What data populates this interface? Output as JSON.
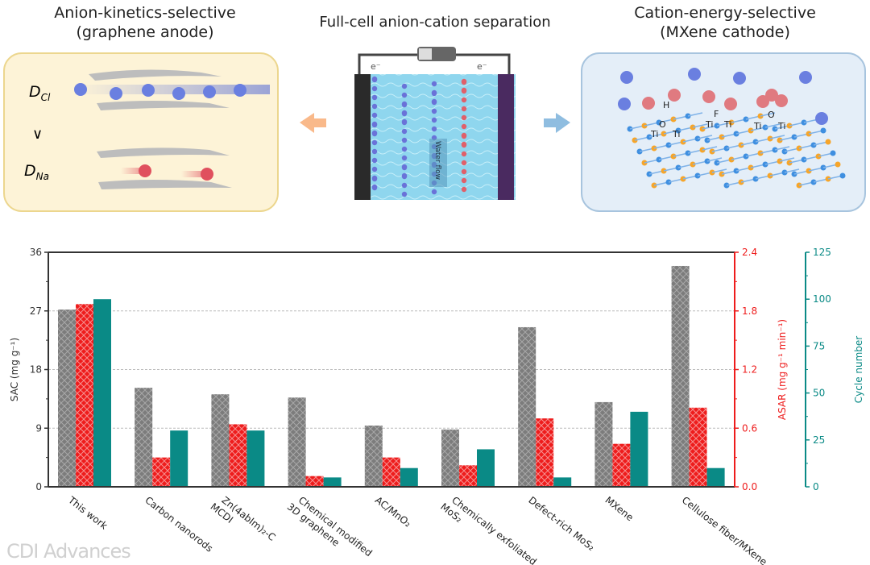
{
  "panels": {
    "left_title": [
      "Anion-kinetics-selective",
      "(graphene anode)"
    ],
    "center_title": "Full-cell anion-cation separation",
    "right_title": [
      "Cation-energy-selective",
      "(MXene cathode)"
    ],
    "d_cl": "D",
    "d_cl_sub": "Cl",
    "d_na": "D",
    "d_na_sub": "Na",
    "compare": "∨",
    "electron": "e⁻",
    "water_flow": "Water flow",
    "ti": "Ti",
    "h": "H",
    "o": "O",
    "f": "F"
  },
  "watermark": "CDI Advances",
  "colors": {
    "sac": "#808080",
    "asar": "#ee1c1c",
    "cycle": "#0a8a86"
  },
  "chart_data": {
    "type": "bar",
    "categories": [
      "This work",
      "Carbon nanorods",
      "Zn(4abIm)₂-C MCDI",
      "Chemical modified 3D graphene",
      "AC/MnO₂",
      "Chemically exfoliated MoS₂",
      "Defect-rich MoS₂",
      "MXene",
      "Cellulose fiber/MXene"
    ],
    "category_lines": [
      [
        "This work"
      ],
      [
        "Carbon nanorods"
      ],
      [
        "Zn(4abIm)₂-C",
        "MCDI"
      ],
      [
        "Chemical modified",
        "3D graphene"
      ],
      [
        "AC/MnO₂"
      ],
      [
        "Chemically exfoliated",
        "MoS₂"
      ],
      [
        "Defect-rich MoS₂"
      ],
      [
        "MXene"
      ],
      [
        "Cellulose fiber/MXene"
      ]
    ],
    "series": [
      {
        "name": "SAC",
        "axis": "left",
        "values": [
          27.2,
          15.2,
          14.2,
          13.7,
          9.4,
          8.8,
          24.5,
          13.0,
          33.9
        ]
      },
      {
        "name": "ASAR",
        "axis": "right1",
        "values": [
          1.87,
          0.3,
          0.64,
          0.11,
          0.3,
          0.22,
          0.7,
          0.44,
          0.81
        ]
      },
      {
        "name": "Cycle number",
        "axis": "right2",
        "values": [
          100,
          30,
          30,
          5,
          10,
          20,
          5,
          40,
          10
        ]
      }
    ],
    "axes": {
      "left": {
        "label": "SAC (mg g⁻¹)",
        "range": [
          0,
          36
        ],
        "ticks": [
          "0",
          "9",
          "18",
          "27",
          "36"
        ]
      },
      "right1": {
        "label": "ASAR (mg g⁻¹ min⁻¹)",
        "range": [
          0,
          2.4
        ],
        "ticks": [
          "0.0",
          "0.6",
          "1.2",
          "1.8",
          "2.4"
        ]
      },
      "right2": {
        "label": "Cycle number",
        "range": [
          0,
          125
        ],
        "ticks": [
          "0",
          "25",
          "50",
          "75",
          "100",
          "125"
        ]
      }
    },
    "grid": "horizontal dashed"
  }
}
